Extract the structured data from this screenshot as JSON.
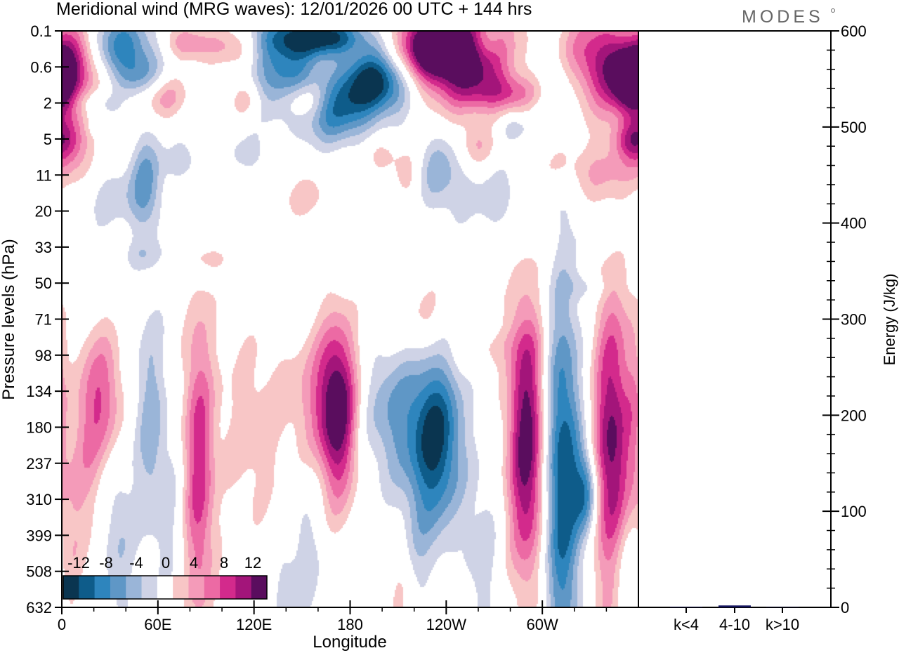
{
  "chart_data": {
    "type": "contour",
    "title": "Meridional wind (MRG waves):  12/01/2026  00 UTC  + 144 hrs",
    "brand": "MODES",
    "xlabel": "Longitude",
    "ylabel": "Pressure levels (hPa)",
    "y2label": "Energy (J/kg)",
    "x_ticks": [
      "0",
      "60E",
      "120E",
      "180",
      "120W",
      "60W"
    ],
    "x_tick_lon": [
      0,
      60,
      120,
      180,
      240,
      300
    ],
    "x_range": [
      0,
      360
    ],
    "pressure_levels": [
      "0.1",
      "0.6",
      "2",
      "5",
      "11",
      "20",
      "33",
      "50",
      "71",
      "98",
      "134",
      "180",
      "237",
      "310",
      "399",
      "508",
      "632"
    ],
    "energy_axis": {
      "ticks": [
        0,
        100,
        200,
        300,
        400,
        500,
        600
      ],
      "range": [
        0,
        600
      ]
    },
    "energy_bars": {
      "categories": [
        "k<4",
        "4-10",
        "k>10"
      ],
      "values": [
        0.5,
        2,
        0.3
      ],
      "color": "#15155e"
    },
    "colorbar": {
      "labels": [
        "-12",
        "-8",
        "-4",
        "0",
        "4",
        "8",
        "12"
      ],
      "levels": [
        -14,
        -12,
        -10,
        -8,
        -6,
        -4,
        -2,
        2,
        4,
        6,
        8,
        10,
        12,
        14
      ],
      "colors": [
        "#0a3550",
        "#0e5c8a",
        "#2e85bd",
        "#5f97c6",
        "#9ab5d8",
        "#cfd3e6",
        "#ffffff",
        "#f8c6c6",
        "#f49bb9",
        "#ec6aa4",
        "#d32a8c",
        "#a3157a",
        "#5a0d5e"
      ]
    },
    "features": [
      {
        "lon": 8,
        "lev": 0.9,
        "w": 16,
        "h": 1.2,
        "v": 10
      },
      {
        "lon": 37,
        "lev": 0.4,
        "w": 22,
        "h": 0.9,
        "v": -9
      },
      {
        "lon": 48,
        "lev": 1.3,
        "w": 14,
        "h": 0.6,
        "v": -5
      },
      {
        "lon": 20,
        "lev": 2.0,
        "w": 14,
        "h": 0.4,
        "v": -4
      },
      {
        "lon": 62,
        "lev": 1.8,
        "w": 16,
        "h": 0.6,
        "v": 5
      },
      {
        "lon": 78,
        "lev": 0.3,
        "w": 16,
        "h": 0.5,
        "v": 6
      },
      {
        "lon": 108,
        "lev": 0.5,
        "w": 14,
        "h": 0.6,
        "v": 5
      },
      {
        "lon": 138,
        "lev": 0.9,
        "w": 22,
        "h": 1.4,
        "v": -9
      },
      {
        "lon": 162,
        "lev": 0.15,
        "w": 28,
        "h": 0.5,
        "v": -12
      },
      {
        "lon": 195,
        "lev": 1.4,
        "w": 22,
        "h": 0.9,
        "v": -14
      },
      {
        "lon": 172,
        "lev": 2.3,
        "w": 20,
        "h": 0.9,
        "v": -8
      },
      {
        "lon": 230,
        "lev": 0.4,
        "w": 22,
        "h": 0.9,
        "v": 13
      },
      {
        "lon": 252,
        "lev": 0.7,
        "w": 30,
        "h": 1.4,
        "v": 13
      },
      {
        "lon": 265,
        "lev": 0.3,
        "w": 10,
        "h": 0.5,
        "v": -4
      },
      {
        "lon": 280,
        "lev": 1.7,
        "w": 26,
        "h": 0.5,
        "v": 6
      },
      {
        "lon": 310,
        "lev": 1.6,
        "w": 22,
        "h": 0.9,
        "v": -4
      },
      {
        "lon": 335,
        "lev": 0.9,
        "w": 22,
        "h": 1.4,
        "v": 11
      },
      {
        "lon": 355,
        "lev": 1.4,
        "w": 12,
        "h": 0.9,
        "v": 13
      },
      {
        "lon": 150,
        "lev": 1.9,
        "w": 14,
        "h": 0.5,
        "v": 5
      },
      {
        "lon": 115,
        "lev": 1.9,
        "w": 10,
        "h": 0.5,
        "v": 4
      },
      {
        "lon": 5,
        "lev": 3.2,
        "w": 14,
        "h": 1.1,
        "v": 6
      },
      {
        "lon": 30,
        "lev": 4.6,
        "w": 24,
        "h": 0.9,
        "v": -3
      },
      {
        "lon": 52,
        "lev": 4.2,
        "w": 10,
        "h": 1.4,
        "v": -6
      },
      {
        "lon": 75,
        "lev": 3.6,
        "w": 14,
        "h": 0.6,
        "v": -3
      },
      {
        "lon": 115,
        "lev": 3.4,
        "w": 12,
        "h": 0.5,
        "v": -3
      },
      {
        "lon": 152,
        "lev": 4.6,
        "w": 16,
        "h": 0.6,
        "v": 3
      },
      {
        "lon": 198,
        "lev": 3.4,
        "w": 12,
        "h": 0.5,
        "v": 3
      },
      {
        "lon": 215,
        "lev": 4.0,
        "w": 8,
        "h": 0.7,
        "v": 3
      },
      {
        "lon": 236,
        "lev": 3.9,
        "w": 14,
        "h": 1.1,
        "v": -5
      },
      {
        "lon": 258,
        "lev": 3.2,
        "w": 10,
        "h": 0.6,
        "v": 4
      },
      {
        "lon": 282,
        "lev": 2.7,
        "w": 10,
        "h": 0.4,
        "v": -4
      },
      {
        "lon": 282,
        "lev": 4.6,
        "w": 32,
        "h": 1.0,
        "v": -4
      },
      {
        "lon": 330,
        "lev": 3.9,
        "w": 32,
        "h": 0.8,
        "v": 4
      },
      {
        "lon": 355,
        "lev": 3.0,
        "w": 12,
        "h": 0.5,
        "v": 6
      },
      {
        "lon": 292,
        "lev": 4.4,
        "w": 14,
        "h": 1.2,
        "v": 3
      },
      {
        "lon": 50,
        "lev": 6.2,
        "w": 12,
        "h": 0.4,
        "v": -2.5
      },
      {
        "lon": 95,
        "lev": 6.3,
        "w": 8,
        "h": 0.3,
        "v": 2.5
      },
      {
        "lon": 338,
        "lev": 5.8,
        "w": 14,
        "h": 0.5,
        "v": -2.5
      },
      {
        "lon": 328,
        "lev": 7.1,
        "w": 14,
        "h": 0.4,
        "v": -2.5
      },
      {
        "lon": 225,
        "lev": 7.9,
        "w": 16,
        "h": 1.2,
        "v": 3
      },
      {
        "lon": 268,
        "lev": 8.6,
        "w": 22,
        "h": 0.7,
        "v": 3
      },
      {
        "lon": 263,
        "lev": 8.2,
        "w": 14,
        "h": 0.5,
        "v": -3
      },
      {
        "lon": 26,
        "lev": 10.2,
        "w": 12,
        "h": 1.9,
        "v": 7
      },
      {
        "lon": 15,
        "lev": 11.5,
        "w": 10,
        "h": 2.8,
        "v": 4
      },
      {
        "lon": 55,
        "lev": 10.8,
        "w": 10,
        "h": 3.2,
        "v": -5
      },
      {
        "lon": 85,
        "lev": 12.2,
        "w": 10,
        "h": 4.5,
        "v": 9
      },
      {
        "lon": 118,
        "lev": 11.1,
        "w": 22,
        "h": 3.0,
        "v": 3
      },
      {
        "lon": 172,
        "lev": 10.6,
        "w": 12,
        "h": 2.5,
        "v": 12
      },
      {
        "lon": 162,
        "lev": 10.2,
        "w": 22,
        "h": 1.9,
        "v": 5
      },
      {
        "lon": 206,
        "lev": 10.6,
        "w": 22,
        "h": 1.9,
        "v": -6
      },
      {
        "lon": 234,
        "lev": 11.3,
        "w": 16,
        "h": 2.3,
        "v": -12
      },
      {
        "lon": 290,
        "lev": 11.4,
        "w": 12,
        "h": 3.8,
        "v": 14
      },
      {
        "lon": 312,
        "lev": 12.4,
        "w": 12,
        "h": 5.0,
        "v": -12
      },
      {
        "lon": 327,
        "lev": 12.8,
        "w": 8,
        "h": 1.2,
        "v": -9
      },
      {
        "lon": 343,
        "lev": 11.8,
        "w": 12,
        "h": 4.5,
        "v": 13
      },
      {
        "lon": 357,
        "lev": 10.4,
        "w": 6,
        "h": 3.0,
        "v": 3
      },
      {
        "lon": 35,
        "lev": 14.0,
        "w": 10,
        "h": 2.5,
        "v": -4
      },
      {
        "lon": 68,
        "lev": 13.5,
        "w": 10,
        "h": 2.5,
        "v": -2.5
      },
      {
        "lon": 152,
        "lev": 14.5,
        "w": 12,
        "h": 2.5,
        "v": -3
      },
      {
        "lon": 222,
        "lev": 14.0,
        "w": 14,
        "h": 2.5,
        "v": -3
      },
      {
        "lon": 262,
        "lev": 14.5,
        "w": 12,
        "h": 2.5,
        "v": -3
      },
      {
        "lon": 350,
        "lev": 15.0,
        "w": 10,
        "h": 2.0,
        "v": -5
      },
      {
        "lon": 5,
        "lev": 14.0,
        "w": 8,
        "h": 3.0,
        "v": 3
      },
      {
        "lon": 212,
        "lev": 15.5,
        "w": 8,
        "h": 1.5,
        "v": 3
      },
      {
        "lon": 138,
        "lev": 15.5,
        "w": 8,
        "h": 1.5,
        "v": -2.5
      },
      {
        "lon": 20,
        "lev": 2.6,
        "w": 6,
        "h": 0.3,
        "v": -2.5
      }
    ]
  }
}
